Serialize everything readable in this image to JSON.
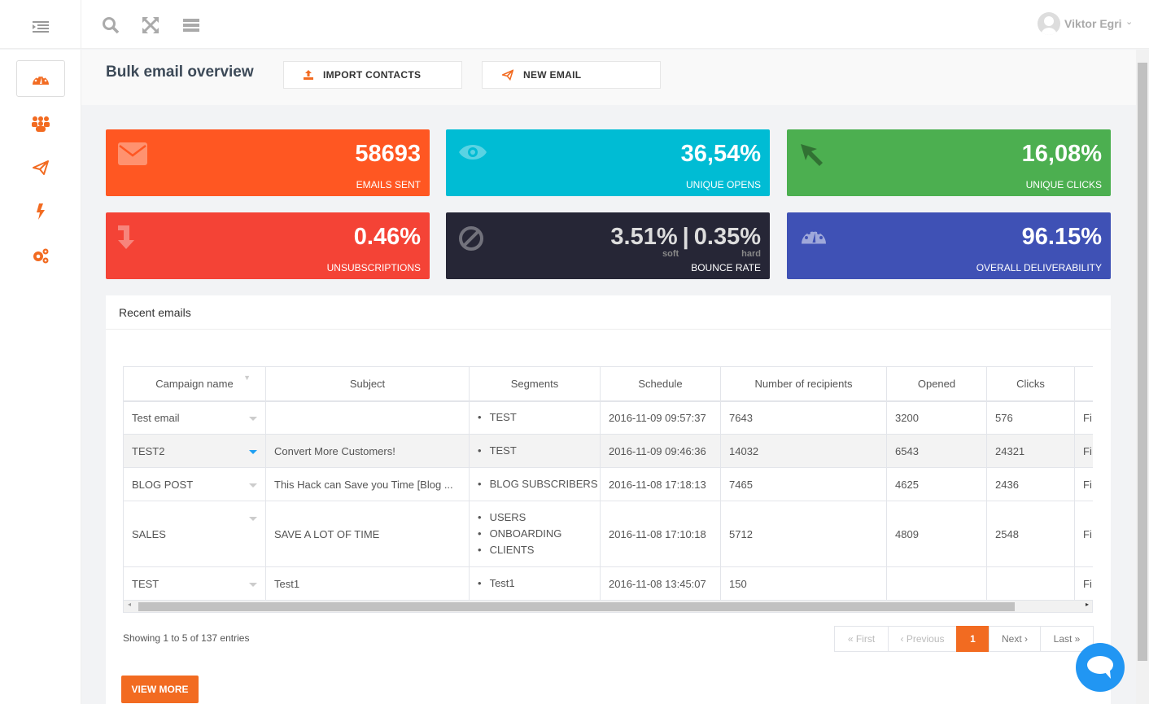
{
  "topbar": {
    "user_name": "Viktor Egri",
    "icons": [
      "indent-icon",
      "search-icon",
      "expand-icon",
      "server-icon"
    ]
  },
  "sidebar": {
    "items": [
      "dashboard-icon",
      "contacts-icon",
      "campaigns-icon",
      "automation-icon",
      "settings-icon"
    ]
  },
  "header": {
    "title": "Bulk email overview",
    "import_label": "IMPORT CONTACTS",
    "new_email_label": "NEW EMAIL"
  },
  "colors": {
    "accent": "#f26b21",
    "sent": "#ff5722",
    "opens": "#00bcd4",
    "clicks": "#4caf50",
    "unsub": "#f44336",
    "bounce": "#262636",
    "deliver": "#3f51b5",
    "chat": "#2196f3"
  },
  "stats": [
    {
      "value": "58693",
      "label": "EMAILS SENT",
      "icon": "envelope-icon"
    },
    {
      "value": "36,54%",
      "label": "UNIQUE OPENS",
      "icon": "eye-icon"
    },
    {
      "value": "16,08%",
      "label": "UNIQUE CLICKS",
      "icon": "cursor-arrow-icon"
    },
    {
      "value": "0.46%",
      "label": "UNSUBSCRIPTIONS",
      "icon": "arrow-down-icon"
    },
    {
      "soft": "3.51%",
      "soft_label": "soft",
      "hard": "0.35%",
      "hard_label": "hard",
      "separator": "|",
      "label": "BOUNCE RATE",
      "icon": "ban-icon"
    },
    {
      "value": "96.15%",
      "label": "OVERALL DELIVERABILITY",
      "icon": "speedometer-icon"
    }
  ],
  "recent": {
    "title": "Recent emails",
    "columns": [
      "Campaign name",
      "Subject",
      "Segments",
      "Schedule",
      "Number of recipients",
      "Opened",
      "Clicks",
      ""
    ],
    "rows": [
      {
        "name": "Test email",
        "subject": "",
        "segments": [
          "TEST"
        ],
        "schedule": "2016-11-09 09:57:37",
        "recipients": "7643",
        "opened": "3200",
        "clicks": "576",
        "extra": "Fi"
      },
      {
        "name": "TEST2",
        "subject": "Convert More Customers!",
        "segments": [
          "TEST"
        ],
        "schedule": "2016-11-09 09:46:36",
        "recipients": "14032",
        "opened": "6543",
        "clicks": "24321",
        "extra": "Fi"
      },
      {
        "name": "BLOG POST",
        "subject": "This Hack can Save you Time [Blog ...",
        "segments": [
          "BLOG SUBSCRIBERS"
        ],
        "schedule": "2016-11-08 17:18:13",
        "recipients": "7465",
        "opened": "4625",
        "clicks": "2436",
        "extra": "Fi"
      },
      {
        "name": "SALES",
        "subject": "SAVE A LOT OF TIME",
        "segments": [
          "USERS",
          "ONBOARDING",
          "CLIENTS"
        ],
        "schedule": "2016-11-08 17:10:18",
        "recipients": "5712",
        "opened": "4809",
        "clicks": "2548",
        "extra": "Fi"
      },
      {
        "name": "TEST",
        "subject": "Test1",
        "segments": [
          "Test1"
        ],
        "schedule": "2016-11-08 13:45:07",
        "recipients": "150",
        "opened": "",
        "clicks": "",
        "extra": "Fi"
      }
    ],
    "info": "Showing 1 to 5 of 137 entries",
    "pagination": {
      "first": "« First",
      "previous": "‹ Previous",
      "current": "1",
      "next": "Next ›",
      "last": "Last »"
    },
    "view_more": "VIEW MORE"
  }
}
